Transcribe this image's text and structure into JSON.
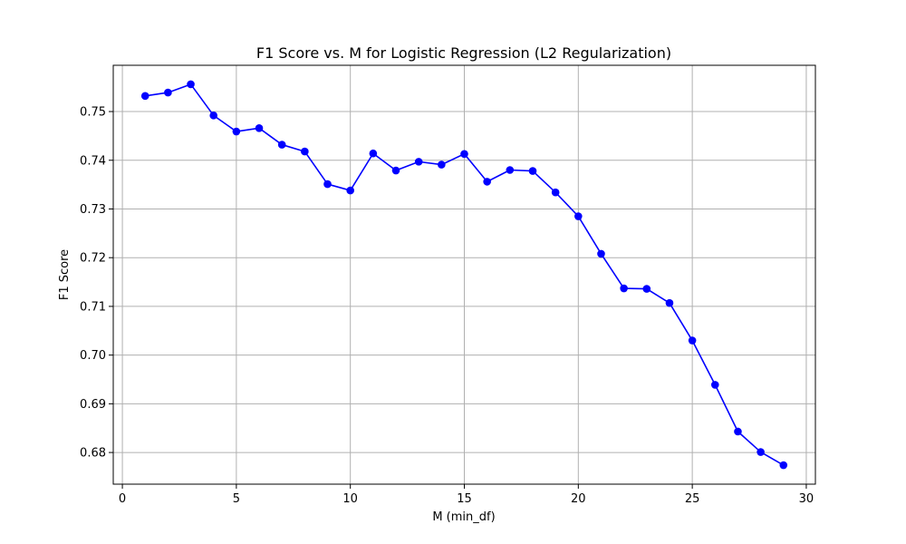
{
  "chart_data": {
    "type": "line",
    "title": "F1 Score vs. M for Logistic Regression (L2 Regularization)",
    "xlabel": "M (min_df)",
    "ylabel": "F1 Score",
    "xlim": [
      -0.4,
      30.4
    ],
    "ylim": [
      0.6735,
      0.7595
    ],
    "xticks": [
      0,
      5,
      10,
      15,
      20,
      25,
      30
    ],
    "yticks": [
      0.68,
      0.69,
      0.7,
      0.71,
      0.72,
      0.73,
      0.74,
      0.75
    ],
    "ytick_labels": [
      "0.68",
      "0.69",
      "0.70",
      "0.71",
      "0.72",
      "0.73",
      "0.74",
      "0.75"
    ],
    "grid": true,
    "series": [
      {
        "color": "#0000ff",
        "marker": "circle",
        "x": [
          1,
          2,
          3,
          4,
          5,
          6,
          7,
          8,
          9,
          10,
          11,
          12,
          13,
          14,
          15,
          16,
          17,
          18,
          19,
          20,
          21,
          22,
          23,
          24,
          25,
          26,
          27,
          28,
          29
        ],
        "y": [
          0.7532,
          0.7539,
          0.7556,
          0.7492,
          0.7459,
          0.7466,
          0.7432,
          0.7418,
          0.7351,
          0.7338,
          0.7414,
          0.7379,
          0.7397,
          0.7391,
          0.7413,
          0.7356,
          0.738,
          0.7378,
          0.7334,
          0.7285,
          0.7208,
          0.7137,
          0.7136,
          0.7107,
          0.703,
          0.6939,
          0.6843,
          0.6801,
          0.6774
        ]
      }
    ]
  },
  "colors": {
    "grid": "#b0b0b0",
    "axes": "#000000",
    "line": "#0000ff"
  }
}
